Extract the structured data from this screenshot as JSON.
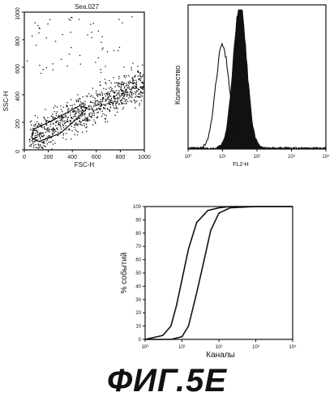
{
  "figure": {
    "caption": "ФИГ.5Е"
  },
  "chart_data": [
    {
      "type": "scatter",
      "title": "Sea.027",
      "xlabel": "FSC-H",
      "ylabel": "SSC-H",
      "xlim": [
        0,
        1000
      ],
      "ylim": [
        0,
        1000
      ],
      "xticks": [
        "0",
        "200",
        "400",
        "600",
        "800",
        "1000"
      ],
      "yticks": [
        "0",
        "200",
        "400",
        "600",
        "800",
        "1000"
      ],
      "gate": {
        "x": [
          60,
          120,
          300,
          430,
          520,
          460,
          250,
          80,
          60
        ],
        "y": [
          90,
          60,
          120,
          220,
          300,
          320,
          220,
          150,
          90
        ]
      },
      "description_points": "dense diagonal cloud from ~(50,100) to ~(1000,500) plus sparse outliers"
    },
    {
      "type": "area",
      "xlabel": "FL2-H",
      "ylabel": "Количество",
      "xscale": "log",
      "xlim": [
        1,
        10000
      ],
      "xticks": [
        "10⁰",
        "10¹",
        "10²",
        "10³",
        "10⁴"
      ],
      "series": [
        {
          "style": "open",
          "peak_at": 10,
          "relative_height": 0.72
        },
        {
          "style": "filled",
          "peak_at": 32,
          "relative_height": 1.0
        }
      ]
    },
    {
      "type": "line",
      "xlabel": "Каналы",
      "ylabel": "% событий",
      "xscale": "log",
      "xlim": [
        1,
        10000
      ],
      "ylim": [
        0,
        100
      ],
      "xticks": [
        "10⁰",
        "10¹",
        "10²",
        "10³",
        "10⁴"
      ],
      "yticks": [
        "0",
        "10",
        "20",
        "30",
        "40",
        "50",
        "60",
        "70",
        "80",
        "90",
        "100"
      ],
      "series": [
        {
          "x": [
            1,
            3,
            5,
            7,
            10,
            15,
            25,
            50,
            100,
            200,
            1000,
            10000
          ],
          "y": [
            0,
            3,
            10,
            25,
            45,
            68,
            88,
            97,
            99,
            100,
            100,
            100
          ]
        },
        {
          "x": [
            1,
            5,
            10,
            15,
            25,
            40,
            60,
            100,
            200,
            1000,
            10000
          ],
          "y": [
            0,
            0,
            2,
            10,
            35,
            60,
            82,
            95,
            99,
            100,
            100
          ]
        }
      ]
    }
  ]
}
